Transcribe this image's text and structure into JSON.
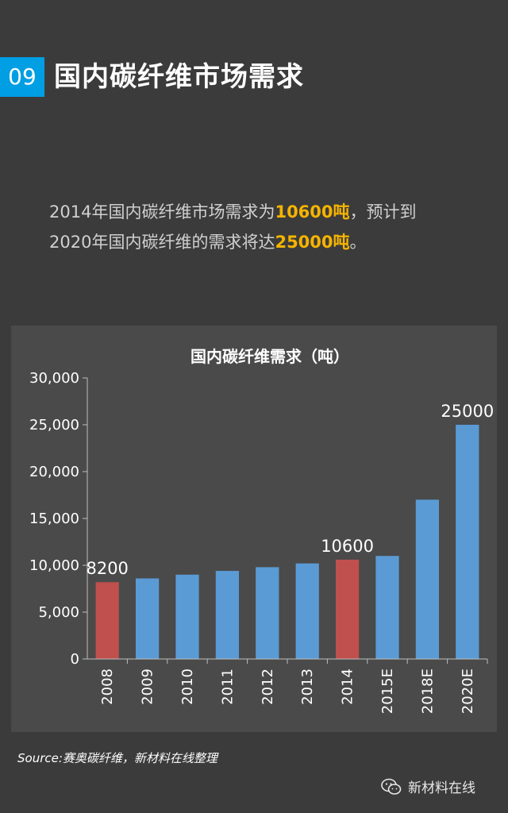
{
  "header": {
    "number": "09",
    "title": "国内碳纤维市场需求"
  },
  "intro": {
    "line1_a": "2014年国内碳纤维市场需求为",
    "line1_hl": "10600吨",
    "line1_b": "，预计到",
    "line2_a": "2020年国内碳纤维的需求将达",
    "line2_hl": "25000吨",
    "line2_b": "。"
  },
  "colors": {
    "accent_blue": "#009ee3",
    "highlight": "#f5b400",
    "bar_blue": "#5b9bd5",
    "bar_red": "#c0504d"
  },
  "chart_data": {
    "type": "bar",
    "title": "国内碳纤维需求（吨）",
    "categories": [
      "2008",
      "2009",
      "2010",
      "2011",
      "2012",
      "2013",
      "2014",
      "2015E",
      "2018E",
      "2020E"
    ],
    "values": [
      8200,
      8600,
      9000,
      9400,
      9800,
      10200,
      10600,
      11000,
      17000,
      25000
    ],
    "highlighted": [
      "2008",
      "2014"
    ],
    "data_labels": {
      "2008": "8200",
      "2014": "10600",
      "2020E": "25000"
    },
    "ylim": [
      0,
      30000
    ],
    "yticks": [
      "0",
      "5,000",
      "10,000",
      "15,000",
      "20,000",
      "25,000",
      "30,000"
    ],
    "legend": "none",
    "grid": false
  },
  "footer": {
    "source": "Source:赛奥碳纤维，新材料在线整理",
    "brand": "新材料在线",
    "brand_icon": "wechat-icon"
  }
}
